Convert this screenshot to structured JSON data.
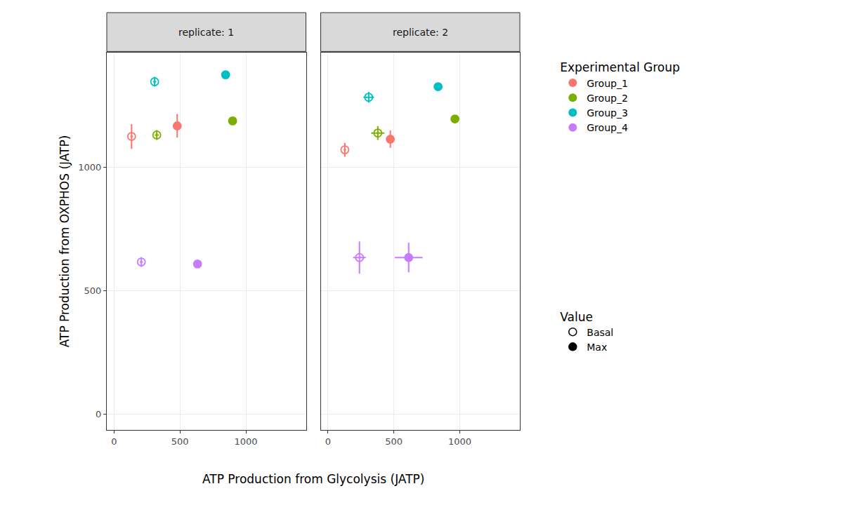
{
  "chart_data": {
    "type": "scatter",
    "x_label": "ATP Production from Glycolysis (JATP)",
    "y_label": "ATP Production from OXPHOS (JATP)",
    "xlim": [
      -55,
      1455
    ],
    "xticks": [
      0,
      500,
      1000
    ],
    "ylim": [
      -65,
      1465
    ],
    "yticks": [
      0,
      500,
      1000
    ],
    "grid": true,
    "legend": "right",
    "group_legend_title": "Experimental Group",
    "value_legend": {
      "title": "Value",
      "items": [
        {
          "label": "Basal",
          "marker": "circle-open"
        },
        {
          "label": "Max",
          "marker": "circle"
        }
      ]
    },
    "panels": [
      {
        "title": "replicate: 1",
        "series": [
          {
            "name": "Group_1",
            "color": "#F8766D",
            "kind": [
              "Basal",
              "Max"
            ],
            "x": [
              133,
              479
            ],
            "y": [
              1125,
              1168
            ],
            "x_error": [
              10,
              10
            ],
            "y_error": [
              50,
              48
            ]
          },
          {
            "name": "Group_2",
            "color": "#7CAE00",
            "kind": [
              "Basal",
              "Max"
            ],
            "x": [
              324,
              899
            ],
            "y": [
              1131,
              1188
            ],
            "x_error": [
              15,
              10
            ],
            "y_error": [
              20,
              8
            ]
          },
          {
            "name": "Group_3",
            "color": "#00BFC4",
            "kind": [
              "Basal",
              "Max"
            ],
            "x": [
              308,
              846
            ],
            "y": [
              1347,
              1375
            ],
            "x_error": [
              12,
              10
            ],
            "y_error": [
              20,
              8
            ]
          },
          {
            "name": "Group_4",
            "color": "#C77CFF",
            "kind": [
              "Basal",
              "Max"
            ],
            "x": [
              207,
              633
            ],
            "y": [
              616,
              608
            ],
            "x_error": [
              12,
              10
            ],
            "y_error": [
              20,
              8
            ]
          }
        ]
      },
      {
        "title": "replicate: 2",
        "series": [
          {
            "name": "Group_1",
            "color": "#F8766D",
            "kind": [
              "Basal",
              "Max"
            ],
            "x": [
              128,
              473
            ],
            "y": [
              1071,
              1114
            ],
            "x_error": [
              10,
              12
            ],
            "y_error": [
              28,
              35
            ]
          },
          {
            "name": "Group_2",
            "color": "#7CAE00",
            "kind": [
              "Basal",
              "Max"
            ],
            "x": [
              378,
              963
            ],
            "y": [
              1139,
              1196
            ],
            "x_error": [
              50,
              10
            ],
            "y_error": [
              28,
              10
            ]
          },
          {
            "name": "Group_3",
            "color": "#00BFC4",
            "kind": [
              "Basal",
              "Max"
            ],
            "x": [
              309,
              835
            ],
            "y": [
              1284,
              1327
            ],
            "x_error": [
              40,
              10
            ],
            "y_error": [
              22,
              10
            ]
          },
          {
            "name": "Group_4",
            "color": "#C77CFF",
            "kind": [
              "Basal",
              "Max"
            ],
            "x": [
              239,
              612
            ],
            "y": [
              634,
              634
            ],
            "x_error": [
              48,
              105
            ],
            "y_error": [
              65,
              60
            ]
          }
        ]
      }
    ]
  }
}
